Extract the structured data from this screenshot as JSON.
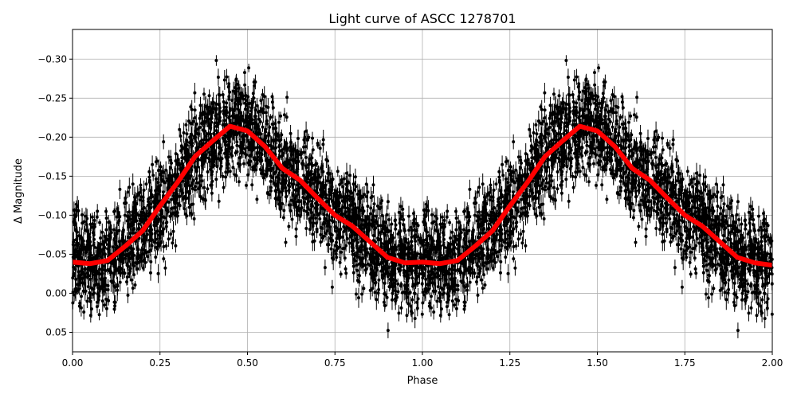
{
  "chart_data": {
    "type": "scatter",
    "title": "Light curve of ASCC 1278701",
    "xlabel": "Phase",
    "ylabel": "Δ Magnitude",
    "xlim": [
      0,
      2
    ],
    "ylim": [
      0.075,
      -0.338
    ],
    "y_inverted": true,
    "grid": true,
    "xticks": [
      "0.00",
      "0.25",
      "0.50",
      "0.75",
      "1.00",
      "1.25",
      "1.50",
      "1.75",
      "2.00"
    ],
    "xtick_values": [
      0,
      0.25,
      0.5,
      0.75,
      1,
      1.25,
      1.5,
      1.75,
      2
    ],
    "yticks": [
      "−0.30",
      "−0.25",
      "−0.20",
      "−0.15",
      "−0.10",
      "−0.05",
      "0.00",
      "0.05"
    ],
    "ytick_values": [
      -0.3,
      -0.25,
      -0.2,
      -0.15,
      -0.1,
      -0.05,
      0.0,
      0.05
    ],
    "series": [
      {
        "type": "errorbar-scatter",
        "color": "#000000",
        "description_of_spread": "dense observations with error bars around the binned curve, repeated over two phase cycles"
      },
      {
        "type": "line",
        "color": "#ff0000",
        "phase": [
          0,
          0.05,
          0.1,
          0.15,
          0.2,
          0.25,
          0.3,
          0.35,
          0.4,
          0.45,
          0.5,
          0.55,
          0.6,
          0.65,
          0.7,
          0.75,
          0.8,
          0.85,
          0.9,
          0.95,
          1.0,
          1.05,
          1.1,
          1.15,
          1.2,
          1.25,
          1.3,
          1.35,
          1.4,
          1.45,
          1.5,
          1.55,
          1.6,
          1.65,
          1.7,
          1.75,
          1.8,
          1.85,
          1.9,
          1.95,
          2.0
        ],
        "magnitude": [
          -0.04,
          -0.038,
          -0.042,
          -0.06,
          -0.08,
          -0.112,
          -0.142,
          -0.175,
          -0.195,
          -0.214,
          -0.208,
          -0.188,
          -0.16,
          -0.145,
          -0.122,
          -0.1,
          -0.086,
          -0.066,
          -0.046,
          -0.039,
          -0.04,
          -0.038,
          -0.042,
          -0.06,
          -0.08,
          -0.112,
          -0.142,
          -0.175,
          -0.195,
          -0.214,
          -0.208,
          -0.188,
          -0.16,
          -0.145,
          -0.122,
          -0.1,
          -0.086,
          -0.066,
          -0.046,
          -0.039,
          -0.036
        ]
      }
    ]
  }
}
